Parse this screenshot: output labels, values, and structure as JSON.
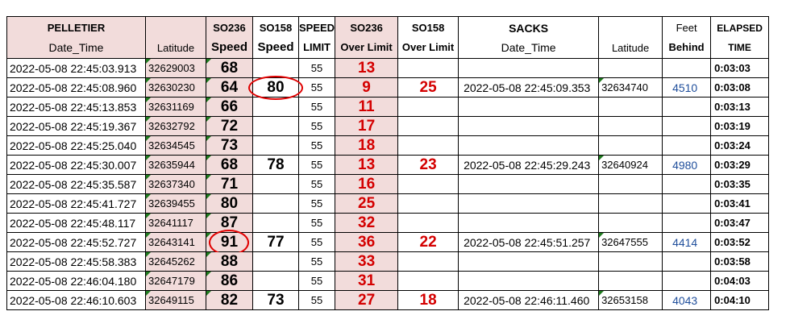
{
  "headers": {
    "pelletier": [
      "PELLETIER",
      "Date_Time"
    ],
    "latitude1": "Latitude",
    "so236_speed": [
      "SO236",
      "Speed"
    ],
    "so158_speed": [
      "SO158",
      "Speed"
    ],
    "speed_limit": [
      "SPEED",
      "LIMIT"
    ],
    "so236_over": [
      "SO236",
      "Over Limit"
    ],
    "so158_over": [
      "SO158",
      "Over Limit"
    ],
    "sacks": [
      "SACKS",
      "Date_Time"
    ],
    "latitude2": "Latitude",
    "feet_behind": [
      "Feet",
      "Behind"
    ],
    "elapsed": [
      "ELAPSED",
      "TIME"
    ]
  },
  "rows": [
    {
      "dt": "2022-05-08 22:45:03.913",
      "lat": "32629003",
      "s236": "68",
      "s158": "",
      "limit": "55",
      "o236": "13",
      "o158": "",
      "sdt": "",
      "slat": "",
      "feet": "",
      "elapsed": "0:03:03"
    },
    {
      "dt": "2022-05-08 22:45:08.960",
      "lat": "32630230",
      "s236": "64",
      "s158": "80",
      "limit": "55",
      "o236": "9",
      "o158": "25",
      "sdt": "2022-05-08 22:45:09.353",
      "slat": "32634740",
      "feet": "4510",
      "elapsed": "0:03:08"
    },
    {
      "dt": "2022-05-08 22:45:13.853",
      "lat": "32631169",
      "s236": "66",
      "s158": "",
      "limit": "55",
      "o236": "11",
      "o158": "",
      "sdt": "",
      "slat": "",
      "feet": "",
      "elapsed": "0:03:13"
    },
    {
      "dt": "2022-05-08 22:45:19.367",
      "lat": "32632792",
      "s236": "72",
      "s158": "",
      "limit": "55",
      "o236": "17",
      "o158": "",
      "sdt": "",
      "slat": "",
      "feet": "",
      "elapsed": "0:03:19"
    },
    {
      "dt": "2022-05-08 22:45:25.040",
      "lat": "32634545",
      "s236": "73",
      "s158": "",
      "limit": "55",
      "o236": "18",
      "o158": "",
      "sdt": "",
      "slat": "",
      "feet": "",
      "elapsed": "0:03:24"
    },
    {
      "dt": "2022-05-08 22:45:30.007",
      "lat": "32635944",
      "s236": "68",
      "s158": "78",
      "limit": "55",
      "o236": "13",
      "o158": "23",
      "sdt": "2022-05-08 22:45:29.243",
      "slat": "32640924",
      "feet": "4980",
      "elapsed": "0:03:29"
    },
    {
      "dt": "2022-05-08 22:45:35.587",
      "lat": "32637340",
      "s236": "71",
      "s158": "",
      "limit": "55",
      "o236": "16",
      "o158": "",
      "sdt": "",
      "slat": "",
      "feet": "",
      "elapsed": "0:03:35"
    },
    {
      "dt": "2022-05-08 22:45:41.727",
      "lat": "32639455",
      "s236": "80",
      "s158": "",
      "limit": "55",
      "o236": "25",
      "o158": "",
      "sdt": "",
      "slat": "",
      "feet": "",
      "elapsed": "0:03:41"
    },
    {
      "dt": "2022-05-08 22:45:48.117",
      "lat": "32641117",
      "s236": "87",
      "s158": "",
      "limit": "55",
      "o236": "32",
      "o158": "",
      "sdt": "",
      "slat": "",
      "feet": "",
      "elapsed": "0:03:47"
    },
    {
      "dt": "2022-05-08 22:45:52.727",
      "lat": "32643141",
      "s236": "91",
      "s158": "77",
      "limit": "55",
      "o236": "36",
      "o158": "22",
      "sdt": "2022-05-08 22:45:51.257",
      "slat": "32647555",
      "feet": "4414",
      "elapsed": "0:03:52"
    },
    {
      "dt": "2022-05-08 22:45:58.383",
      "lat": "32645262",
      "s236": "88",
      "s158": "",
      "limit": "55",
      "o236": "33",
      "o158": "",
      "sdt": "",
      "slat": "",
      "feet": "",
      "elapsed": "0:03:58"
    },
    {
      "dt": "2022-05-08 22:46:04.180",
      "lat": "32647179",
      "s236": "86",
      "s158": "",
      "limit": "55",
      "o236": "31",
      "o158": "",
      "sdt": "",
      "slat": "",
      "feet": "",
      "elapsed": "0:04:03"
    },
    {
      "dt": "2022-05-08 22:46:10.603",
      "lat": "32649115",
      "s236": "82",
      "s158": "73",
      "limit": "55",
      "o236": "27",
      "o158": "18",
      "sdt": "2022-05-08 22:46:11.460",
      "slat": "32653158",
      "feet": "4043",
      "elapsed": "0:04:10"
    }
  ],
  "highlights": [
    {
      "row": 1,
      "column": "so158_speed",
      "value": "80"
    },
    {
      "row": 9,
      "column": "so236_speed",
      "value": "91"
    }
  ],
  "colors": {
    "header_fill": "#f2dcdb",
    "over_limit_text": "#d40000",
    "feet_text": "#1f4e9b",
    "circle": "#e00000",
    "triangle": "#1e7a1e"
  }
}
